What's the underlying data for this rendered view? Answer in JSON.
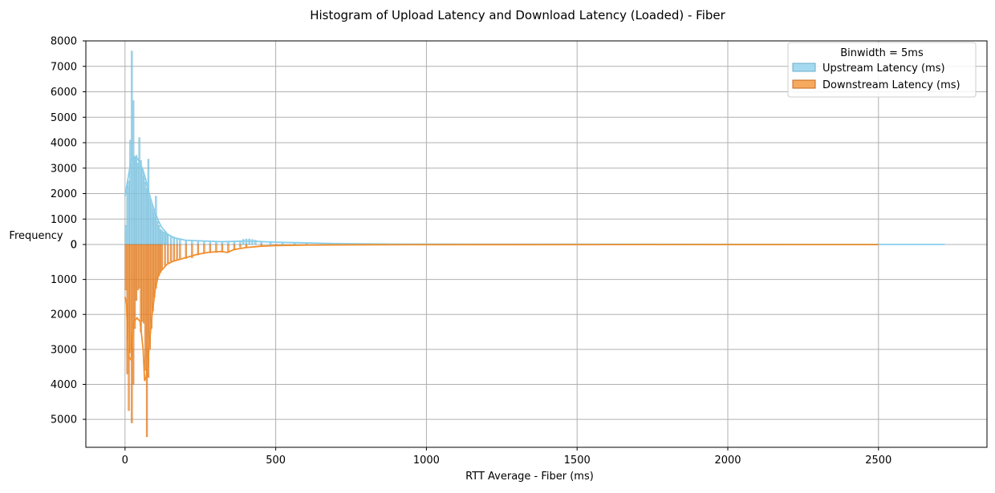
{
  "chart_data": {
    "type": "histogram-mirrored",
    "title": "Histogram of Upload Latency and Download Latency (Loaded)  - Fiber",
    "xlabel": "RTT Average - Fiber (ms)",
    "ylabel": "Frequency",
    "x_ticks": [
      0,
      500,
      1000,
      1500,
      2000,
      2500
    ],
    "xlim": [
      -130,
      2860
    ],
    "upper_ylim": [
      0,
      8000
    ],
    "upper_ticks": [
      0,
      1000,
      2000,
      3000,
      4000,
      5000,
      6000,
      7000,
      8000
    ],
    "lower_ylim": [
      0,
      5800
    ],
    "lower_ticks": [
      0,
      1000,
      2000,
      3000,
      4000,
      5000
    ],
    "grid": true,
    "binwidth_ms": 5,
    "legend": {
      "title": "Binwidth = 5ms",
      "position": "top-right",
      "entries": [
        "Upstream Latency (ms)",
        "Downstream Latency (ms)"
      ]
    },
    "colors": {
      "upstream": "#87ceeb",
      "upstream_edge": "#6aaec8",
      "downstream": "#f28e2b",
      "downstream_edge": "#c8661a",
      "grid": "#b0b0b0"
    },
    "series": [
      {
        "name": "Upstream Latency (ms)",
        "direction": "up",
        "bins": [
          [
            0,
            750
          ],
          [
            5,
            2300
          ],
          [
            10,
            2500
          ],
          [
            15,
            4100
          ],
          [
            20,
            7600
          ],
          [
            25,
            5650
          ],
          [
            30,
            3400
          ],
          [
            35,
            3500
          ],
          [
            40,
            3200
          ],
          [
            45,
            4200
          ],
          [
            50,
            3300
          ],
          [
            55,
            3000
          ],
          [
            60,
            2700
          ],
          [
            65,
            2450
          ],
          [
            70,
            2200
          ],
          [
            75,
            3350
          ],
          [
            80,
            1800
          ],
          [
            85,
            1600
          ],
          [
            90,
            1400
          ],
          [
            95,
            1250
          ],
          [
            100,
            1900
          ],
          [
            105,
            900
          ],
          [
            110,
            750
          ],
          [
            115,
            600
          ],
          [
            120,
            550
          ],
          [
            125,
            500
          ],
          [
            130,
            480
          ],
          [
            135,
            420
          ],
          [
            140,
            400
          ],
          [
            150,
            350
          ],
          [
            160,
            300
          ],
          [
            170,
            260
          ],
          [
            180,
            230
          ],
          [
            200,
            180
          ],
          [
            220,
            160
          ],
          [
            240,
            150
          ],
          [
            260,
            140
          ],
          [
            280,
            120
          ],
          [
            300,
            110
          ],
          [
            320,
            100
          ],
          [
            340,
            110
          ],
          [
            360,
            130
          ],
          [
            380,
            150
          ],
          [
            390,
            200
          ],
          [
            400,
            220
          ],
          [
            410,
            220
          ],
          [
            420,
            200
          ],
          [
            430,
            170
          ],
          [
            450,
            120
          ],
          [
            480,
            90
          ],
          [
            520,
            70
          ],
          [
            560,
            60
          ],
          [
            600,
            55
          ],
          [
            650,
            40
          ],
          [
            700,
            30
          ],
          [
            800,
            20
          ],
          [
            1000,
            15
          ],
          [
            1200,
            12
          ],
          [
            1500,
            10
          ],
          [
            2000,
            8
          ],
          [
            2500,
            5
          ],
          [
            2700,
            5
          ]
        ],
        "kde": [
          [
            0,
            1900
          ],
          [
            10,
            2600
          ],
          [
            20,
            3300
          ],
          [
            30,
            3450
          ],
          [
            40,
            3400
          ],
          [
            50,
            3200
          ],
          [
            60,
            2900
          ],
          [
            70,
            2500
          ],
          [
            80,
            2000
          ],
          [
            90,
            1600
          ],
          [
            100,
            1250
          ],
          [
            110,
            950
          ],
          [
            120,
            700
          ],
          [
            140,
            420
          ],
          [
            160,
            270
          ],
          [
            200,
            170
          ],
          [
            260,
            140
          ],
          [
            320,
            110
          ],
          [
            360,
            120
          ],
          [
            400,
            140
          ],
          [
            440,
            120
          ],
          [
            500,
            90
          ],
          [
            580,
            70
          ],
          [
            700,
            35
          ],
          [
            900,
            15
          ],
          [
            1200,
            10
          ],
          [
            1600,
            8
          ],
          [
            2000,
            6
          ],
          [
            2500,
            4
          ],
          [
            2720,
            3
          ]
        ]
      },
      {
        "name": "Downstream Latency (ms)",
        "direction": "down",
        "bins": [
          [
            0,
            1300
          ],
          [
            5,
            3700
          ],
          [
            10,
            4750
          ],
          [
            15,
            3100
          ],
          [
            20,
            5100
          ],
          [
            25,
            4000
          ],
          [
            30,
            2400
          ],
          [
            35,
            1600
          ],
          [
            40,
            1300
          ],
          [
            45,
            1250
          ],
          [
            50,
            2500
          ],
          [
            55,
            2200
          ],
          [
            60,
            2250
          ],
          [
            65,
            3600
          ],
          [
            70,
            5500
          ],
          [
            75,
            3800
          ],
          [
            80,
            3000
          ],
          [
            85,
            2400
          ],
          [
            90,
            1900
          ],
          [
            95,
            1500
          ],
          [
            100,
            1250
          ],
          [
            105,
            1000
          ],
          [
            110,
            900
          ],
          [
            115,
            800
          ],
          [
            120,
            700
          ],
          [
            130,
            600
          ],
          [
            140,
            520
          ],
          [
            150,
            480
          ],
          [
            160,
            450
          ],
          [
            170,
            440
          ],
          [
            180,
            420
          ],
          [
            200,
            400
          ],
          [
            220,
            380
          ],
          [
            240,
            300
          ],
          [
            260,
            260
          ],
          [
            280,
            240
          ],
          [
            300,
            230
          ],
          [
            320,
            220
          ],
          [
            340,
            200
          ],
          [
            360,
            120
          ],
          [
            380,
            80
          ],
          [
            400,
            60
          ],
          [
            450,
            40
          ],
          [
            500,
            25
          ],
          [
            600,
            15
          ],
          [
            800,
            10
          ],
          [
            1000,
            8
          ],
          [
            1500,
            5
          ],
          [
            2000,
            4
          ],
          [
            2500,
            3
          ]
        ],
        "kde": [
          [
            0,
            1500
          ],
          [
            5,
            1700
          ],
          [
            10,
            3200
          ],
          [
            20,
            3300
          ],
          [
            25,
            2600
          ],
          [
            30,
            2200
          ],
          [
            40,
            2100
          ],
          [
            50,
            2200
          ],
          [
            60,
            3000
          ],
          [
            65,
            3900
          ],
          [
            70,
            3800
          ],
          [
            75,
            3500
          ],
          [
            80,
            2900
          ],
          [
            90,
            2000
          ],
          [
            100,
            1300
          ],
          [
            110,
            900
          ],
          [
            120,
            750
          ],
          [
            140,
            560
          ],
          [
            160,
            480
          ],
          [
            180,
            430
          ],
          [
            200,
            380
          ],
          [
            240,
            280
          ],
          [
            280,
            220
          ],
          [
            320,
            200
          ],
          [
            340,
            230
          ],
          [
            360,
            150
          ],
          [
            400,
            90
          ],
          [
            450,
            50
          ],
          [
            500,
            30
          ],
          [
            600,
            15
          ],
          [
            800,
            8
          ],
          [
            1200,
            5
          ],
          [
            2000,
            3
          ],
          [
            2500,
            2
          ]
        ]
      }
    ]
  }
}
